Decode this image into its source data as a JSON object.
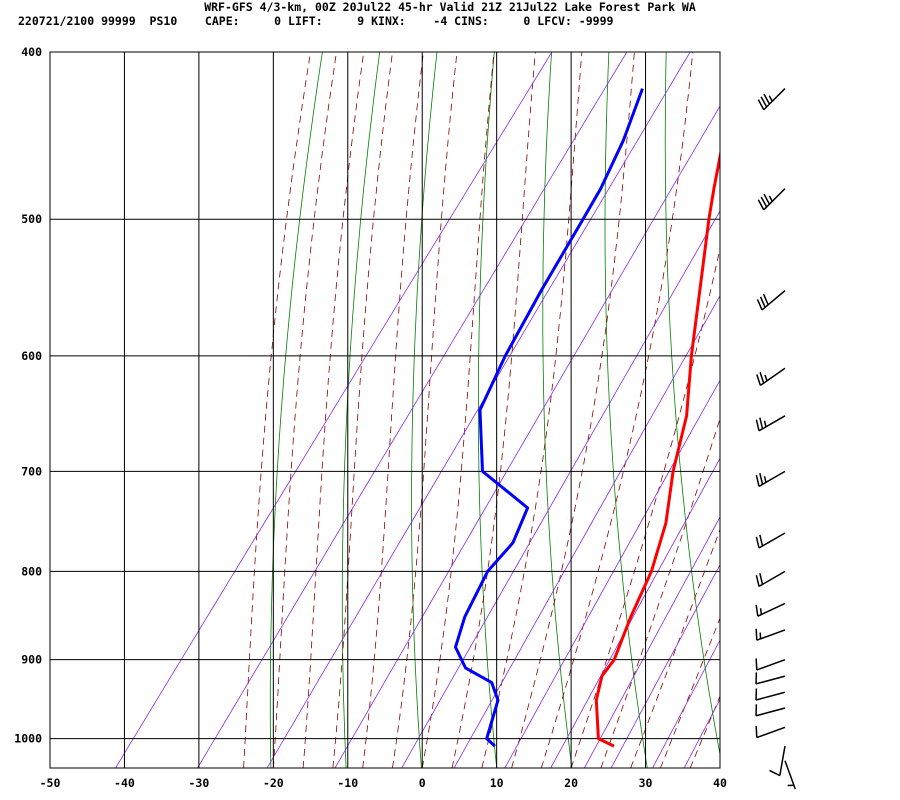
{
  "header": {
    "line1": "WRF-GFS 4/3-km, 00Z 20Jul22 45-hr Valid 21Z 21Jul22 Lake Forest Park WA",
    "line2": "220721/2100 99999  PS10    CAPE:     0 LIFT:     9 KINX:    -4 CINS:     0 LFCV: -9999"
  },
  "chart_data": {
    "type": "skew-t",
    "title": "WRF-GFS 4/3-km, 00Z 20Jul22 45-hr Valid 21Z 21Jul22 Lake Forest Park WA",
    "x_ticks": [
      -50,
      -40,
      -30,
      -20,
      -10,
      0,
      10,
      20,
      30,
      40
    ],
    "y_ticks": [
      400,
      500,
      600,
      700,
      800,
      900,
      1000
    ],
    "xlim": [
      -50,
      40
    ],
    "ylim_hpa": [
      400,
      1040
    ],
    "y_scale": "log-pressure",
    "grid": true,
    "background_lines": {
      "dry_adiabats_color": "#008000",
      "moist_adiabats_color": "#8b0000",
      "mixing_ratio_color": "#8a2be2"
    },
    "series": [
      {
        "color": "#ff0000",
        "kind": "temperature",
        "pressure": [
          420,
          450,
          480,
          500,
          550,
          600,
          650,
          700,
          750,
          800,
          850,
          900,
          920,
          950,
          1000,
          1010
        ],
        "temperature": [
          -21.9,
          -18.6,
          -15.3,
          -13.1,
          -7.6,
          -2.6,
          2.4,
          5.8,
          9.7,
          12.3,
          13.8,
          15.6,
          15.5,
          17.0,
          20.9,
          23.7
        ]
      },
      {
        "color": "#0000ff",
        "kind": "dewpoint",
        "pressure": [
          420,
          450,
          480,
          500,
          550,
          600,
          645,
          700,
          735,
          770,
          800,
          850,
          885,
          910,
          928,
          950,
          1000,
          1010
        ],
        "dewpoint": [
          -34.3,
          -32.0,
          -30.5,
          -30.0,
          -28.9,
          -27.6,
          -25.9,
          -19.8,
          -10.3,
          -9.0,
          -9.7,
          -8.5,
          -6.9,
          -3.6,
          1.3,
          3.8,
          5.9,
          7.7
        ]
      }
    ],
    "wind_barbs": {
      "pressure": [
        420,
        480,
        550,
        610,
        650,
        700,
        760,
        800,
        835,
        865,
        900,
        920,
        940,
        960,
        985,
        1010,
        1030
      ],
      "direction_deg": [
        225,
        225,
        230,
        235,
        240,
        240,
        240,
        240,
        245,
        250,
        250,
        255,
        255,
        255,
        250,
        190,
        160
      ],
      "speed_kt": [
        35,
        35,
        30,
        25,
        25,
        25,
        20,
        20,
        15,
        15,
        10,
        10,
        10,
        10,
        10,
        10,
        5
      ]
    }
  }
}
